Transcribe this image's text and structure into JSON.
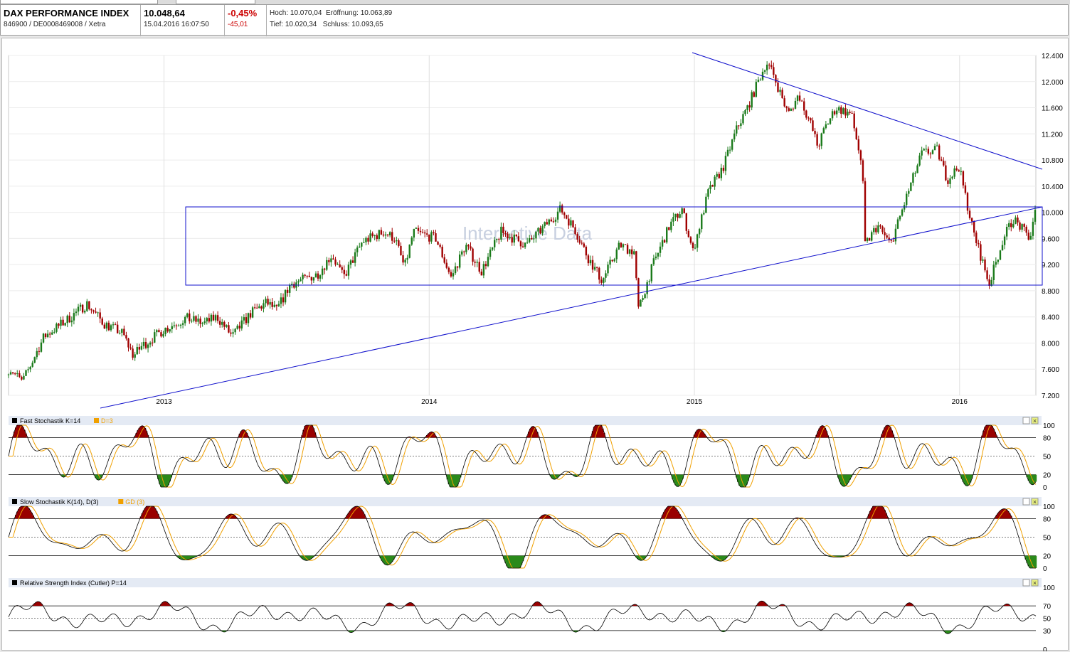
{
  "header": {
    "name": "DAX PERFORMANCE INDEX",
    "isin": "846900 / DE0008469008 / Xetra",
    "last": "10.048,64",
    "datetime": "15.04.2016 16:07:50",
    "change_pct": "-0,45%",
    "change_abs": "-45,01",
    "high_label": "Hoch: 10.070,04",
    "open_label": "Eröffnung: 10.063,89",
    "low_label": "Tief: 10.020,34",
    "close_label": "Schluss: 10.093,65"
  },
  "watermark": "Interactive Data",
  "colors": {
    "up": "#1a7a1a",
    "down": "#a00000",
    "trend": "#1010cc",
    "stoch_k": "#000000",
    "stoch_d": "#f0a000",
    "overbought": "#990000",
    "oversold": "#2a8a1a"
  },
  "chart_data": [
    {
      "type": "candlestick",
      "title": "",
      "ylim": [
        7200,
        12400
      ],
      "yticks": [
        "12.400",
        "12.000",
        "11.600",
        "11.200",
        "10.800",
        "10.400",
        "10.000",
        "9.600",
        "9.200",
        "8.800",
        "8.400",
        "8.000",
        "7.600",
        "7.200"
      ],
      "xticks": [
        "2013",
        "2014",
        "2015",
        "2016"
      ],
      "x_range": [
        "2012-06-01",
        "2016-04-15"
      ],
      "anchors": [
        [
          "2012-06-04",
          7600
        ],
        [
          "2012-06-20",
          7400
        ],
        [
          "2012-07-20",
          8100
        ],
        [
          "2012-08-20",
          8350
        ],
        [
          "2012-09-17",
          8600
        ],
        [
          "2012-10-10",
          8300
        ],
        [
          "2012-11-05",
          8150
        ],
        [
          "2012-11-20",
          7800
        ],
        [
          "2012-12-01",
          7950
        ],
        [
          "2012-12-31",
          8200
        ],
        [
          "2013-01-31",
          8380
        ],
        [
          "2013-02-25",
          8300
        ],
        [
          "2013-03-15",
          8400
        ],
        [
          "2013-04-05",
          8100
        ],
        [
          "2013-04-30",
          8450
        ],
        [
          "2013-05-22",
          8620
        ],
        [
          "2013-06-05",
          8500
        ],
        [
          "2013-06-24",
          8900
        ],
        [
          "2013-07-31",
          9050
        ],
        [
          "2013-08-20",
          9350
        ],
        [
          "2013-09-05",
          9000
        ],
        [
          "2013-10-01",
          9550
        ],
        [
          "2013-10-30",
          9700
        ],
        [
          "2013-11-15",
          9600
        ],
        [
          "2013-11-28",
          9150
        ],
        [
          "2013-12-10",
          9700
        ],
        [
          "2014-01-10",
          9600
        ],
        [
          "2014-01-31",
          9000
        ],
        [
          "2014-02-20",
          9500
        ],
        [
          "2014-03-14",
          9100
        ],
        [
          "2014-04-10",
          9700
        ],
        [
          "2014-05-15",
          9500
        ],
        [
          "2014-06-10",
          9800
        ],
        [
          "2014-07-01",
          10050
        ],
        [
          "2014-07-20",
          9750
        ],
        [
          "2014-08-08",
          9300
        ],
        [
          "2014-08-27",
          8950
        ],
        [
          "2014-09-20",
          9500
        ],
        [
          "2014-10-10",
          9400
        ],
        [
          "2014-10-16",
          8500
        ],
        [
          "2014-11-05",
          9200
        ],
        [
          "2014-11-28",
          9800
        ],
        [
          "2014-12-15",
          10050
        ],
        [
          "2014-12-30",
          9400
        ],
        [
          "2015-01-20",
          10300
        ],
        [
          "2015-02-10",
          10700
        ],
        [
          "2015-03-01",
          11300
        ],
        [
          "2015-03-15",
          11600
        ],
        [
          "2015-04-10",
          12300
        ],
        [
          "2015-04-20",
          12100
        ],
        [
          "2015-05-10",
          11500
        ],
        [
          "2015-05-25",
          11800
        ],
        [
          "2015-06-10",
          11350
        ],
        [
          "2015-06-20",
          11000
        ],
        [
          "2015-06-30",
          11300
        ],
        [
          "2015-07-15",
          11600
        ],
        [
          "2015-08-05",
          11500
        ],
        [
          "2015-08-20",
          10700
        ],
        [
          "2015-08-24",
          9500
        ],
        [
          "2015-09-10",
          9800
        ],
        [
          "2015-09-28",
          9500
        ],
        [
          "2015-10-10",
          9900
        ],
        [
          "2015-10-25",
          10400
        ],
        [
          "2015-11-10",
          10900
        ],
        [
          "2015-12-01",
          10950
        ],
        [
          "2015-12-15",
          10500
        ],
        [
          "2015-12-31",
          10700
        ],
        [
          "2016-01-20",
          9700
        ],
        [
          "2016-02-11",
          8900
        ],
        [
          "2016-03-01",
          9600
        ],
        [
          "2016-03-15",
          9900
        ],
        [
          "2016-04-07",
          9600
        ],
        [
          "2016-04-15",
          10048
        ]
      ]
    },
    {
      "type": "line",
      "title": "Fast Stochastik K=14 D=3",
      "legend": [
        "Fast Stochastik K=14",
        "D=3"
      ],
      "ylim": [
        0,
        100
      ],
      "yticks": [
        "100",
        "80",
        "50",
        "20",
        "0"
      ]
    },
    {
      "type": "line",
      "title": "Slow Stochastik K(14), D(3) GD (3)",
      "legend": [
        "Slow Stochastik K(14), D(3)",
        "GD (3)"
      ],
      "ylim": [
        0,
        100
      ],
      "yticks": [
        "100",
        "80",
        "50",
        "20",
        "0"
      ]
    },
    {
      "type": "line",
      "title": "Relative Strength Index (Cutler) P=14",
      "legend": [
        "Relative Strength Index (Cutler) P=14"
      ],
      "ylim": [
        0,
        100
      ],
      "yticks": [
        "100",
        "70",
        "50",
        "30",
        "0"
      ]
    }
  ]
}
